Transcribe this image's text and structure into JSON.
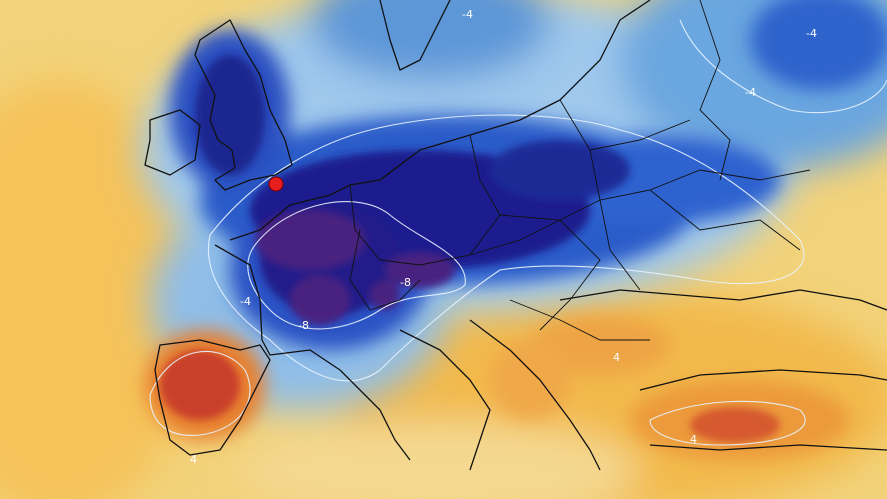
{
  "contour_labels": [
    "-4",
    "-4",
    "-4",
    "-4",
    "-8",
    "-8",
    "4",
    "4",
    "4"
  ]
}
